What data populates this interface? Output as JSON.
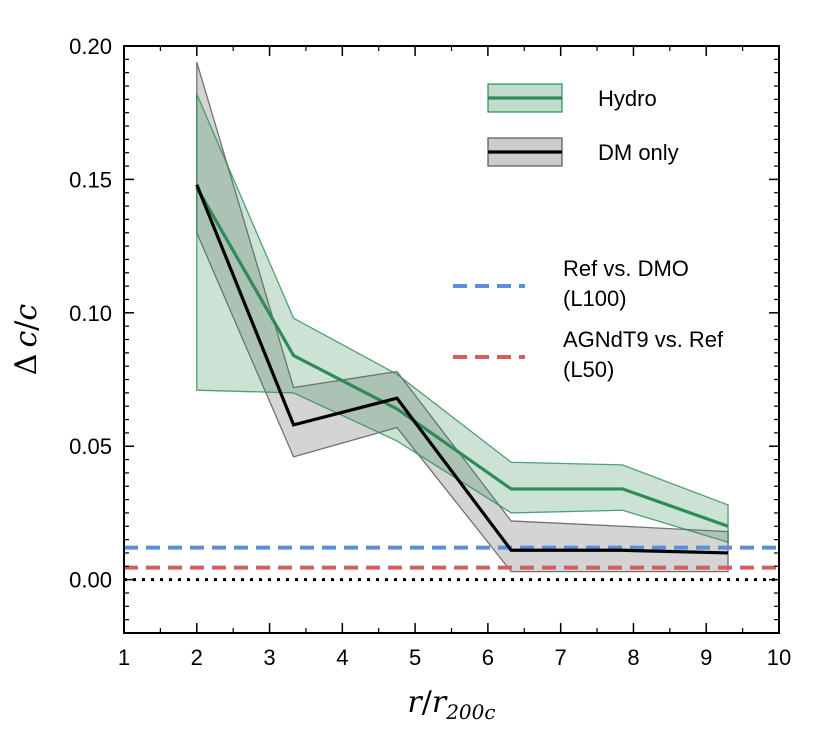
{
  "chart_data": {
    "type": "area",
    "xlim": [
      1,
      10
    ],
    "ylim": [
      -0.02,
      0.2
    ],
    "xticks": [
      1,
      2,
      3,
      4,
      5,
      6,
      7,
      8,
      9,
      10
    ],
    "xtick_labels": [
      "1",
      "2",
      "3",
      "4",
      "5",
      "6",
      "7",
      "8",
      "9",
      "10"
    ],
    "yticks": [
      0.0,
      0.05,
      0.1,
      0.15,
      0.2
    ],
    "ytick_labels": [
      "0.00",
      "0.05",
      "0.10",
      "0.15",
      "0.20"
    ],
    "xlabel": {
      "var": "r",
      "slash": "/",
      "sub_base": "r",
      "sub": "200c"
    },
    "ylabel": {
      "delta": "Δ",
      "var": "c",
      "slash": "/",
      "denom": "c"
    },
    "series": [
      {
        "name": "Hydro",
        "color": "#2e8b57",
        "fill": "#2e8b57",
        "x": [
          2.0,
          3.33,
          4.75,
          6.32,
          7.85,
          9.3
        ],
        "y": [
          0.147,
          0.084,
          0.064,
          0.034,
          0.034,
          0.02
        ],
        "upper": [
          0.182,
          0.098,
          0.077,
          0.044,
          0.043,
          0.028
        ],
        "lower": [
          0.071,
          0.07,
          0.052,
          0.025,
          0.026,
          0.014
        ]
      },
      {
        "name": "DM only",
        "color": "#000000",
        "fill": "#555555",
        "x": [
          2.0,
          3.33,
          4.75,
          6.32,
          7.85,
          9.3
        ],
        "y": [
          0.148,
          0.058,
          0.068,
          0.011,
          0.011,
          0.01
        ],
        "upper": [
          0.194,
          0.072,
          0.078,
          0.022,
          0.02,
          0.018
        ],
        "lower": [
          0.13,
          0.046,
          0.057,
          0.003,
          0.003,
          0.003
        ]
      }
    ],
    "reference_lines": [
      {
        "name": "Ref vs. DMO",
        "sublabel": "(L100)",
        "y": 0.012,
        "color": "#5b8fdb",
        "style": "dashed"
      },
      {
        "name": "AGNdT9 vs. Ref",
        "sublabel": "(L50)",
        "y": 0.0045,
        "color": "#d45f5f",
        "style": "dashed"
      },
      {
        "y": 0.0,
        "color": "#000000",
        "style": "dotted"
      }
    ],
    "legend_position": "top-right",
    "grid": false
  }
}
